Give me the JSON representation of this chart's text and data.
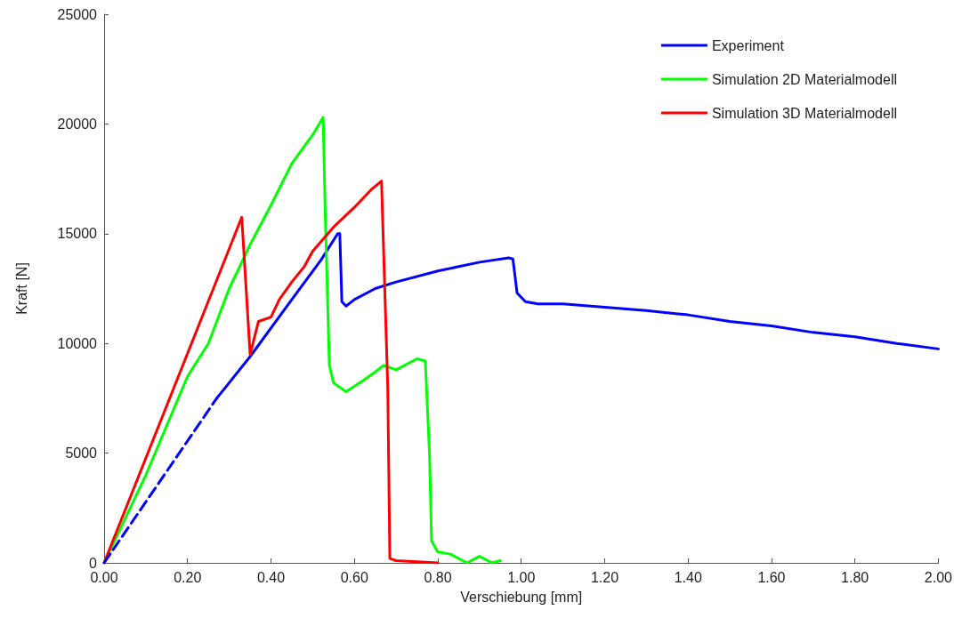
{
  "chart_data": {
    "type": "line",
    "xlabel": "Verschiebung [mm]",
    "ylabel": "Kraft [N]",
    "xlim": [
      0,
      2
    ],
    "ylim": [
      0,
      25000
    ],
    "xticks": [
      {
        "value": 0,
        "label": "0.00"
      },
      {
        "value": 0.2,
        "label": "0.20"
      },
      {
        "value": 0.4,
        "label": "0.40"
      },
      {
        "value": 0.6,
        "label": "0.60"
      },
      {
        "value": 0.8,
        "label": "0.80"
      },
      {
        "value": 1,
        "label": "1.00"
      },
      {
        "value": 1.2,
        "label": "1.20"
      },
      {
        "value": 1.4,
        "label": "1.40"
      },
      {
        "value": 1.6,
        "label": "1.60"
      },
      {
        "value": 1.8,
        "label": "1.80"
      },
      {
        "value": 2,
        "label": "2.00"
      }
    ],
    "yticks": [
      0,
      5000,
      10000,
      15000,
      20000,
      25000
    ],
    "grid": false,
    "legend": "top right",
    "marker": "none",
    "series": [
      {
        "name": "Experiment",
        "color": "#0000ff",
        "line_style": "solid",
        "x": [
          0.27,
          0.35,
          0.45,
          0.52,
          0.56,
          0.565,
          0.57,
          0.58,
          0.6,
          0.65,
          0.7,
          0.8,
          0.9,
          0.97,
          0.98,
          0.99,
          1.01,
          1.04,
          1.1,
          1.2,
          1.3,
          1.4,
          1.5,
          1.6,
          1.7,
          1.8,
          1.9,
          2
        ],
        "values": [
          7500,
          9400,
          12000,
          13800,
          15000,
          15000,
          11900,
          11700,
          12000,
          12500,
          12800,
          13300,
          13700,
          13900,
          13850,
          12300,
          11900,
          11800,
          11800,
          11650,
          11500,
          11300,
          11000,
          10800,
          10500,
          10300,
          10000,
          9750
        ]
      },
      {
        "name": "Simulation 2D Materialmodell",
        "color": "#00ff00",
        "line_style": "solid",
        "x": [
          0,
          0.1,
          0.2,
          0.25,
          0.3,
          0.35,
          0.4,
          0.45,
          0.5,
          0.525,
          0.53,
          0.54,
          0.55,
          0.58,
          0.62,
          0.65,
          0.67,
          0.7,
          0.75,
          0.77,
          0.78,
          0.785,
          0.8,
          0.83,
          0.85,
          0.87,
          0.9,
          0.93,
          0.95
        ],
        "values": [
          0,
          4000,
          8500,
          10000,
          12500,
          14500,
          16300,
          18200,
          19500,
          20300,
          16000,
          9000,
          8200,
          7800,
          8300,
          8700,
          9000,
          8800,
          9300,
          9200,
          5000,
          1000,
          500,
          400,
          200,
          0,
          300,
          0,
          100
        ]
      },
      {
        "name": "Simulation 3D Materialmodell",
        "color": "#ff0000",
        "line_style": "solid",
        "x": [
          0,
          0.33,
          0.35,
          0.37,
          0.4,
          0.42,
          0.45,
          0.48,
          0.5,
          0.55,
          0.6,
          0.64,
          0.665,
          0.68,
          0.685,
          0.7,
          0.8
        ],
        "values": [
          0,
          15750,
          9500,
          11000,
          11200,
          12000,
          12800,
          13500,
          14200,
          15300,
          16200,
          17000,
          17400,
          8000,
          200,
          100,
          0
        ]
      },
      {
        "color": "#0000ff",
        "line_style": "dashed",
        "x": [
          0,
          0.27
        ],
        "values": [
          0,
          7500
        ]
      }
    ]
  }
}
